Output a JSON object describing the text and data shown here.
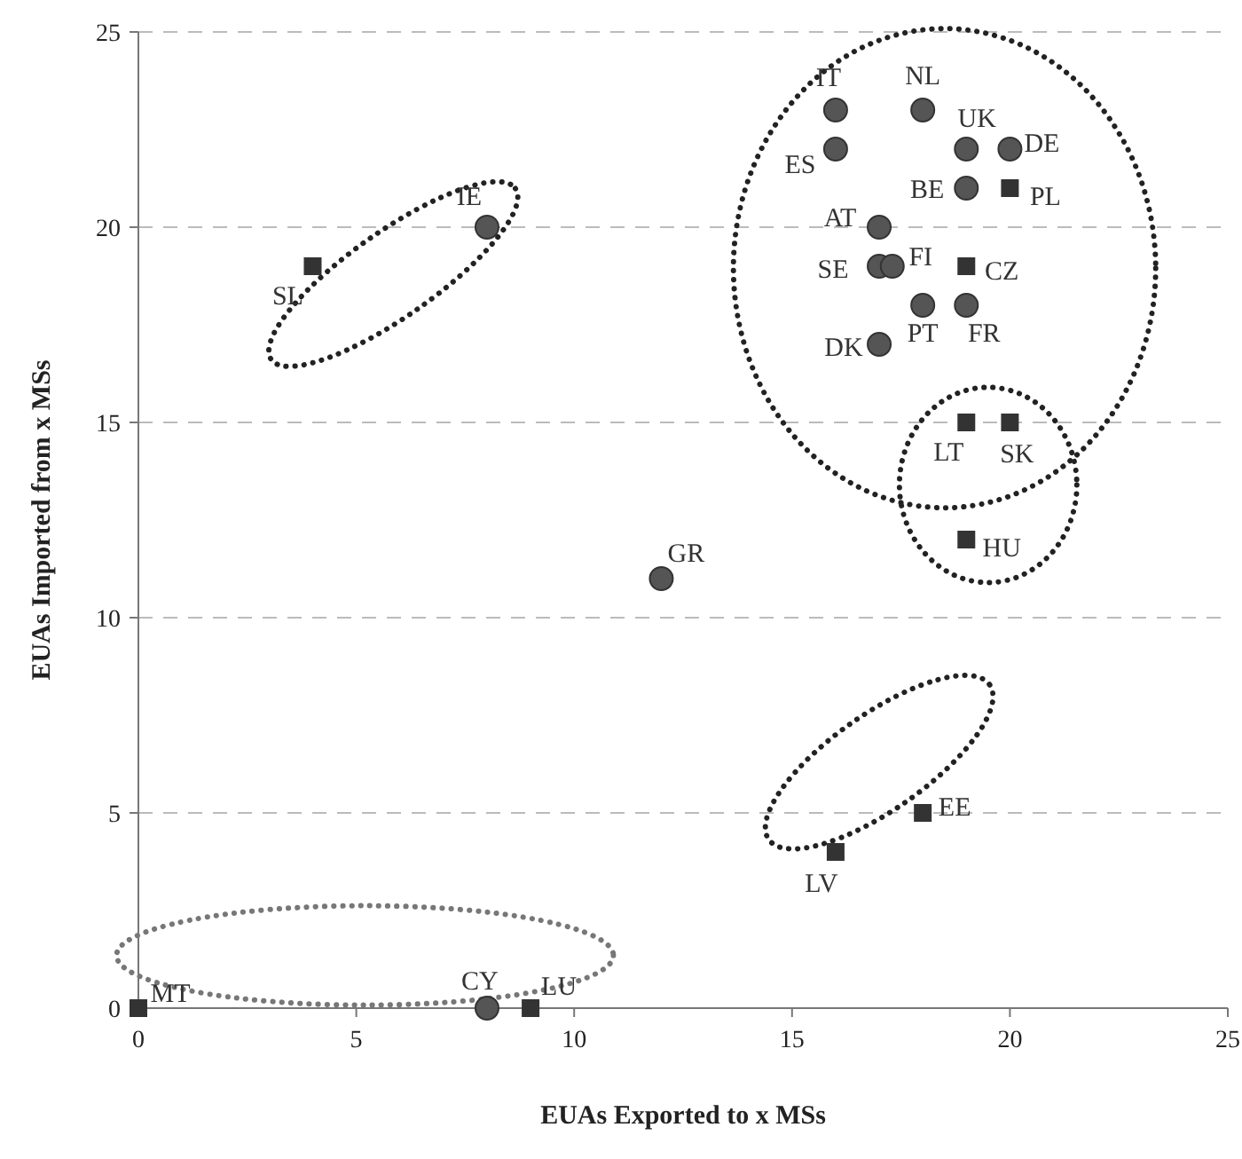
{
  "chart_data": {
    "type": "scatter",
    "xlabel": "EUAs Exported to x MSs",
    "ylabel": "EUAs Imported from x MSs",
    "xlim": [
      0,
      25
    ],
    "ylim": [
      0,
      25
    ],
    "xticks": [
      0,
      5,
      10,
      15,
      20,
      25
    ],
    "yticks": [
      0,
      5,
      10,
      15,
      20,
      25
    ],
    "grid": "y",
    "series": [
      {
        "color": "#555555",
        "marker": "circle",
        "x": [
          16,
          18,
          16,
          19,
          20,
          19,
          17,
          17,
          17.3,
          18,
          19,
          17,
          8,
          12,
          8
        ],
        "values": [
          23,
          23,
          22,
          22,
          22,
          21,
          20,
          19,
          19,
          18,
          18,
          17,
          20,
          11,
          0
        ]
      },
      {
        "color": "#333333",
        "marker": "square",
        "x": [
          20,
          19,
          19,
          20,
          19,
          4,
          18,
          16,
          0,
          9
        ],
        "values": [
          21,
          19,
          15,
          15,
          12,
          19,
          5,
          4,
          0,
          0
        ]
      }
    ],
    "annotations": [
      {
        "text": "IT",
        "x": 16,
        "y": 23
      },
      {
        "text": "NL",
        "x": 18,
        "y": 23
      },
      {
        "text": "ES",
        "x": 16,
        "y": 22
      },
      {
        "text": "UK",
        "x": 19,
        "y": 22
      },
      {
        "text": "DE",
        "x": 20,
        "y": 22
      },
      {
        "text": "BE",
        "x": 19,
        "y": 21
      },
      {
        "text": "PL",
        "x": 20,
        "y": 21
      },
      {
        "text": "AT",
        "x": 17,
        "y": 20
      },
      {
        "text": "SE",
        "x": 17,
        "y": 19
      },
      {
        "text": "FI",
        "x": 17.3,
        "y": 19
      },
      {
        "text": "CZ",
        "x": 19,
        "y": 19
      },
      {
        "text": "PT",
        "x": 18,
        "y": 18
      },
      {
        "text": "FR",
        "x": 19,
        "y": 18
      },
      {
        "text": "DK",
        "x": 17,
        "y": 17
      },
      {
        "text": "IE",
        "x": 8,
        "y": 20
      },
      {
        "text": "GR",
        "x": 12,
        "y": 11
      },
      {
        "text": "CY",
        "x": 8,
        "y": 0
      },
      {
        "text": "SL",
        "x": 4,
        "y": 19
      },
      {
        "text": "LT",
        "x": 19,
        "y": 15
      },
      {
        "text": "SK",
        "x": 20,
        "y": 15
      },
      {
        "text": "HU",
        "x": 19,
        "y": 12
      },
      {
        "text": "EE",
        "x": 18,
        "y": 5
      },
      {
        "text": "LV",
        "x": 16,
        "y": 4
      },
      {
        "text": "MT",
        "x": 0,
        "y": 0
      },
      {
        "text": "LU",
        "x": 9,
        "y": 0
      }
    ]
  }
}
